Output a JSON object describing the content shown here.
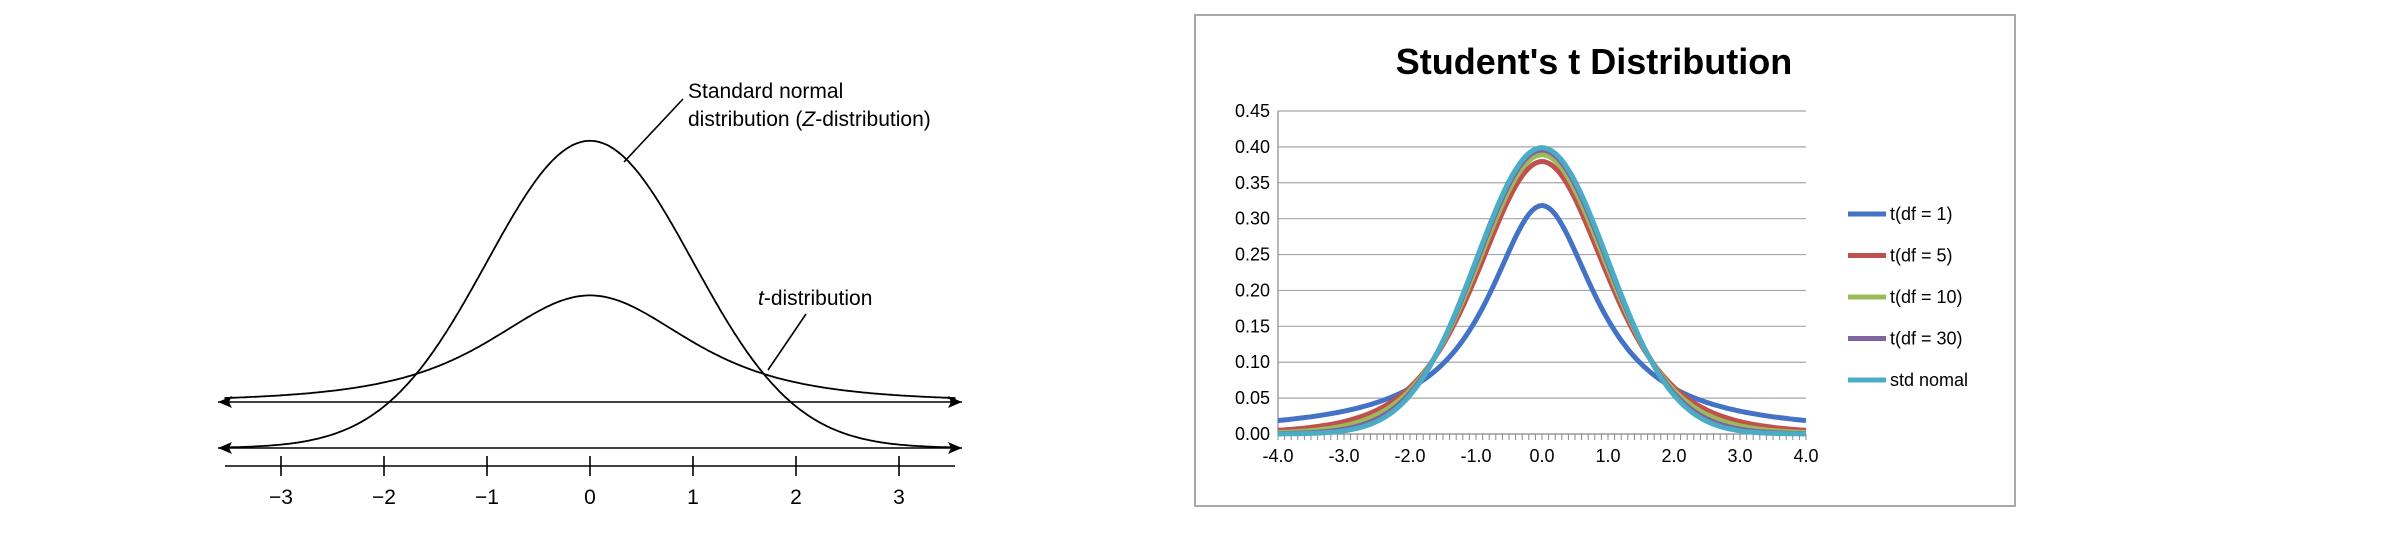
{
  "chart_data": [
    {
      "type": "line",
      "title": "",
      "xlabel": "",
      "ylabel": "",
      "xlim": [
        -3.6,
        3.6
      ],
      "x_ticks": [
        "−3",
        "−2",
        "−1",
        "0",
        "1",
        "2",
        "3"
      ],
      "x_tick_values": [
        -3,
        -2,
        -1,
        0,
        1,
        2,
        3
      ],
      "axis_arrows": true,
      "series": [
        {
          "name": "Standard normal distribution (Z-distribution)",
          "peak": 0.399,
          "shape": "normal"
        },
        {
          "name": "t-distribution",
          "peak": 0.2,
          "shape": "t-heavy-tail"
        }
      ],
      "annotations": [
        {
          "text_plain": "Standard normal",
          "line2_prefix": "distribution (",
          "line2_italic": "Z",
          "line2_suffix": "-distribution)"
        },
        {
          "italic": "t",
          "rest": "-distribution"
        }
      ]
    },
    {
      "type": "line",
      "title": "Student's t Distribution",
      "xlabel": "",
      "ylabel": "",
      "xlim": [
        -4.0,
        4.0
      ],
      "ylim": [
        0.0,
        0.45
      ],
      "x_ticks": [
        "-4.0",
        "-3.0",
        "-2.0",
        "-1.0",
        "0.0",
        "1.0",
        "2.0",
        "3.0",
        "4.0"
      ],
      "y_ticks": [
        "0.00",
        "0.05",
        "0.10",
        "0.15",
        "0.20",
        "0.25",
        "0.30",
        "0.35",
        "0.40",
        "0.45"
      ],
      "grid": "horizontal",
      "legend_position": "right",
      "series": [
        {
          "name": "t(df = 1)",
          "df": 1,
          "color": "#4472c4"
        },
        {
          "name": "t(df = 5)",
          "df": 5,
          "color": "#c0504d"
        },
        {
          "name": "t(df = 10)",
          "df": 10,
          "color": "#9bbb59"
        },
        {
          "name": "t(df = 30)",
          "df": 30,
          "color": "#8064a2"
        },
        {
          "name": "std nomal",
          "df": null,
          "color": "#4bacc6"
        }
      ]
    }
  ]
}
